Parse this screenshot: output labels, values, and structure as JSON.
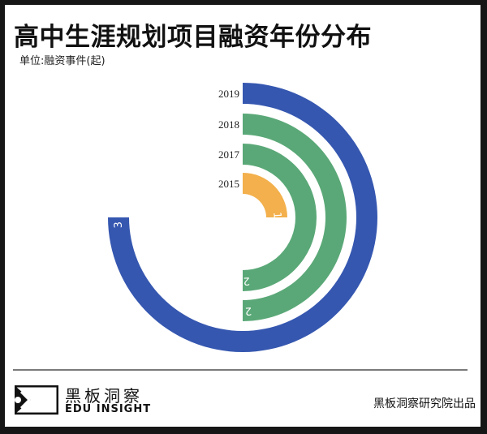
{
  "title": "高中生涯规划项目融资年份分布",
  "unit": "单位:融资事件(起)",
  "chart_data": {
    "type": "radial-bar",
    "title": "高中生涯规划项目融资年份分布",
    "unit_label": "单位:融资事件(起)",
    "max_value": 4,
    "start_angle": "top",
    "direction": "clockwise",
    "categories": [
      "2019",
      "2018",
      "2017",
      "2015"
    ],
    "values": [
      3,
      2,
      2,
      1
    ],
    "colors": [
      "#3557b0",
      "#5aa877",
      "#5aa877",
      "#f3b04c"
    ]
  },
  "footer": {
    "brand_cn": "黑板洞察",
    "brand_en": "EDU INSIGHT",
    "credit": "黑板洞察研究院出品"
  }
}
